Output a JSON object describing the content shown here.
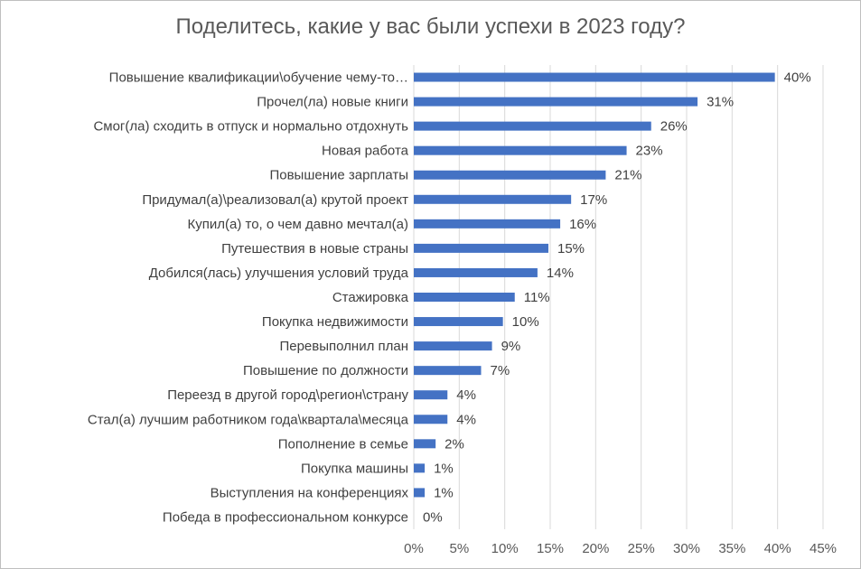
{
  "chart_data": {
    "type": "bar",
    "orientation": "horizontal",
    "title": "Поделитесь, какие у вас были успехи в 2023 году?",
    "categories": [
      "Повышение квалификации\\обучение  чему-то…",
      "Прочел(ла) новые книги",
      "Смог(ла) сходить в отпуск и нормально отдохнуть",
      "Новая работа",
      "Повышение зарплаты",
      "Придумал(а)\\реализовал(а)  крутой проект",
      "Купил(а)  то, о чем давно мечтал(а)",
      "Путешествия в новые страны",
      "Добился(лась) улучшения  условий труда",
      "Стажировка",
      "Покупка недвижимости",
      "Перевыполнил план",
      "Повышение по должности",
      "Переезд в другой город\\регион\\страну",
      "Стал(а)  лучшим работником года\\квартала\\месяца",
      "Пополнение в семье",
      "Покупка машины",
      "Выступления на конференциях",
      "Победа в профессиональном конкурсе"
    ],
    "values": [
      39.7,
      31.2,
      26.1,
      23.4,
      21.1,
      17.3,
      16.1,
      14.8,
      13.6,
      11.1,
      9.8,
      8.6,
      7.4,
      3.7,
      3.7,
      2.4,
      1.2,
      1.2,
      0
    ],
    "value_labels": [
      "40%",
      "31%",
      "26%",
      "23%",
      "21%",
      "17%",
      "16%",
      "15%",
      "14%",
      "11%",
      "10%",
      "9%",
      "7%",
      "4%",
      "4%",
      "2%",
      "1%",
      "1%",
      "0%"
    ],
    "x_ticks": [
      "0%",
      "5%",
      "10%",
      "15%",
      "20%",
      "25%",
      "30%",
      "35%",
      "40%",
      "45%"
    ],
    "xlim": [
      0,
      45
    ],
    "grid": "vertical",
    "legend": "none",
    "bar_color": "#4472C4",
    "grid_color": "#d9d9d9"
  }
}
